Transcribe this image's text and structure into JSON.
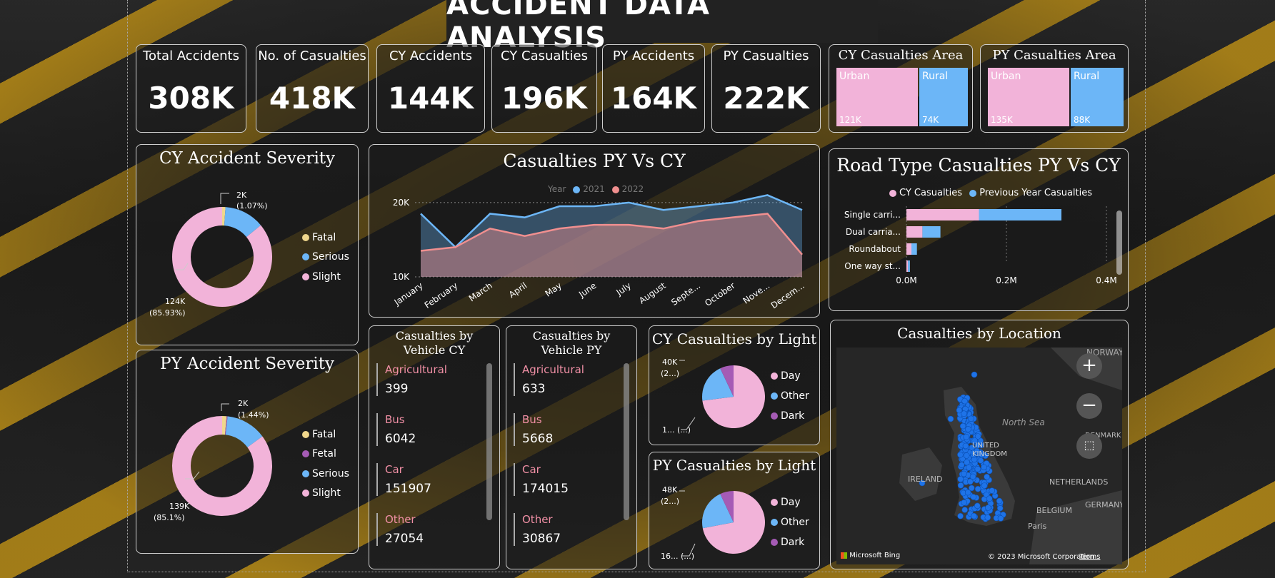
{
  "title": "ACCIDENT DATA ANALYSIS",
  "kpis": [
    {
      "label": "Total Accidents",
      "value": "308K"
    },
    {
      "label": "No. of Casualties",
      "value": "418K"
    },
    {
      "label": "CY Accidents",
      "value": "144K"
    },
    {
      "label": "CY Casualties",
      "value": "196K"
    },
    {
      "label": "PY Accidents",
      "value": "164K"
    },
    {
      "label": "PY Casualties",
      "value": "222K"
    }
  ],
  "area": {
    "cy": {
      "title": "CY Casualties Area",
      "urban_label": "Urban",
      "urban_value": "121K",
      "rural_label": "Rural",
      "rural_value": "74K"
    },
    "py": {
      "title": "PY Casualties Area",
      "urban_label": "Urban",
      "urban_value": "135K",
      "rural_label": "Rural",
      "rural_value": "88K"
    },
    "colors": {
      "urban": "#f2b3d9",
      "rural": "#6cb6f7"
    }
  },
  "severity": {
    "cy": {
      "title": "CY Accident Severity",
      "legend": [
        "Fatal",
        "Serious",
        "Slight"
      ],
      "label_top": "2K",
      "label_top_pct": "(1.07%)",
      "label_bottom": "124K",
      "label_bottom_pct": "(85.93%)"
    },
    "py": {
      "title": "PY Accident Severity",
      "legend": [
        "Fatal",
        "Fetal",
        "Serious",
        "Slight"
      ],
      "label_top": "2K",
      "label_top_pct": "(1.44%)",
      "label_bottom": "139K",
      "label_bottom_pct": "(85.1%)"
    },
    "colors": {
      "Fatal": "#f0d78c",
      "Fetal": "#a55bb5",
      "Serious": "#6cb6f7",
      "Slight": "#f2b3d9"
    }
  },
  "line_chart": {
    "title": "Casualties PY Vs CY",
    "legend_title": "Year",
    "legend": [
      "2021",
      "2022"
    ],
    "y_ticks": [
      "20K",
      "10K"
    ]
  },
  "road_type": {
    "title": "Road Type Casualties PY Vs CY",
    "legend": [
      "CY Casualties",
      "Previous Year Casualties"
    ],
    "x_ticks": [
      "0.0M",
      "0.2M",
      "0.4M"
    ]
  },
  "vehicle": {
    "cy": {
      "title": "Casualties by Vehicle CY",
      "items": [
        {
          "label": "Agricultural",
          "value": "399"
        },
        {
          "label": "Bus",
          "value": "6042"
        },
        {
          "label": "Car",
          "value": "151907"
        },
        {
          "label": "Other",
          "value": "27054"
        }
      ]
    },
    "py": {
      "title": "Casualties by Vehicle PY",
      "items": [
        {
          "label": "Agricultural",
          "value": "633"
        },
        {
          "label": "Bus",
          "value": "5668"
        },
        {
          "label": "Car",
          "value": "174015"
        },
        {
          "label": "Other",
          "value": "30867"
        }
      ]
    }
  },
  "light": {
    "cy": {
      "title": "CY Casualties by Light",
      "legend": [
        "Day",
        "Other",
        "Dark"
      ],
      "label_top": "40K",
      "label_top_sub": "(2...)",
      "label_bottom": "1... (...)"
    },
    "py": {
      "title": "PY Casualties by Light",
      "legend": [
        "Day",
        "Other",
        "Dark"
      ],
      "label_top": "48K",
      "label_top_sub": "(2...)",
      "label_bottom": "16... (...)"
    },
    "colors": {
      "Day": "#f2b3d9",
      "Other": "#6cb6f7",
      "Dark": "#a55bb5"
    }
  },
  "map": {
    "title": "Casualties by Location",
    "labels": {
      "norway": "NORWAY",
      "north_sea": "North Sea",
      "united_kingdom_1": "UNITED",
      "united_kingdom_2": "KINGDOM",
      "ireland": "IRELAND",
      "netherlands": "NETHERLANDS",
      "belgium": "BELGIUM",
      "germany": "GERMANY",
      "denmark": "DENMARK",
      "paris": "Paris"
    },
    "footer_left": "Microsoft Bing",
    "footer_right": "© 2023 Microsoft Corporation",
    "terms": "Terms",
    "zoom_in": "+",
    "zoom_out": "−"
  },
  "chart_data": [
    {
      "type": "area",
      "title": "Casualties PY Vs CY",
      "categories": [
        "January",
        "February",
        "March",
        "April",
        "May",
        "June",
        "July",
        "August",
        "Septe...",
        "October",
        "Nove...",
        "Decem..."
      ],
      "series": [
        {
          "name": "2021",
          "values": [
            18500,
            14000,
            18500,
            18000,
            19500,
            19500,
            20000,
            19000,
            19500,
            20000,
            21000,
            19000
          ]
        },
        {
          "name": "2022",
          "values": [
            13500,
            14000,
            16500,
            15500,
            16500,
            17000,
            17000,
            16500,
            17500,
            18000,
            18500,
            13000
          ]
        }
      ],
      "ylim": [
        10000,
        22000
      ],
      "y_ticks": [
        "20K",
        "10K"
      ]
    },
    {
      "type": "bar",
      "title": "Road Type Casualties PY Vs CY",
      "categories": [
        "Single carri...",
        "Dual carria...",
        "Roundabout",
        "One way st..."
      ],
      "series": [
        {
          "name": "CY Casualties",
          "values": [
            145000,
            32000,
            10000,
            3000
          ]
        },
        {
          "name": "Previous Year Casualties",
          "values": [
            165000,
            36000,
            11000,
            4000
          ]
        }
      ],
      "xlim": [
        0,
        400000
      ],
      "x_ticks": [
        "0.0M",
        "0.2M",
        "0.4M"
      ]
    },
    {
      "type": "pie",
      "title": "CY Accident Severity",
      "categories": [
        "Fatal",
        "Serious",
        "Slight"
      ],
      "values": [
        1.07,
        12.99,
        85.93
      ]
    },
    {
      "type": "pie",
      "title": "PY Accident Severity",
      "categories": [
        "Fatal",
        "Fetal",
        "Serious",
        "Slight"
      ],
      "values": [
        1.44,
        0.3,
        13.16,
        85.1
      ]
    },
    {
      "type": "pie",
      "title": "CY Casualties by Light",
      "categories": [
        "Day",
        "Other",
        "Dark"
      ],
      "values": [
        73,
        20,
        7
      ]
    },
    {
      "type": "pie",
      "title": "PY Casualties by Light",
      "categories": [
        "Day",
        "Other",
        "Dark"
      ],
      "values": [
        72,
        21,
        7
      ]
    }
  ]
}
